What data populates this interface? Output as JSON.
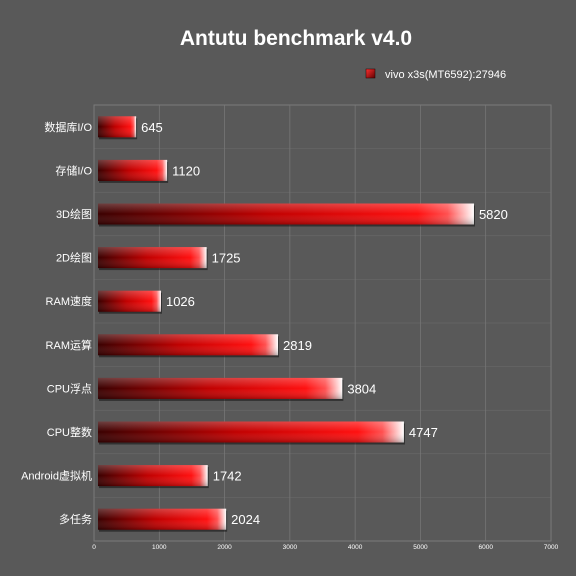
{
  "chart_data": {
    "type": "bar",
    "orientation": "horizontal",
    "title": "Antutu benchmark v4.0",
    "legend": {
      "placement": "top-right",
      "label": "vivo x3s(MT6592):27946"
    },
    "categories": [
      "数据库I/O",
      "存储I/O",
      "3D绘图",
      "2D绘图",
      "RAM速度",
      "RAM运算",
      "CPU浮点",
      "CPU整数",
      "Android虚拟机",
      "多任务"
    ],
    "series": [
      {
        "name": "vivo x3s(MT6592):27946",
        "values": [
          645,
          1120,
          5820,
          1725,
          1026,
          2819,
          3804,
          4747,
          1742,
          2024
        ]
      }
    ],
    "xlim": [
      0,
      7000
    ],
    "xticks": [
      0,
      1000,
      2000,
      3000,
      4000,
      5000,
      6000,
      7000
    ],
    "grid": true,
    "colors": {
      "bar_dark": "#3a0000",
      "bar_mid": "#d80000",
      "bar_bright": "#ff1a1a",
      "background": "#595959",
      "grid": "#7a7a7a",
      "text": "#ffffff"
    }
  }
}
